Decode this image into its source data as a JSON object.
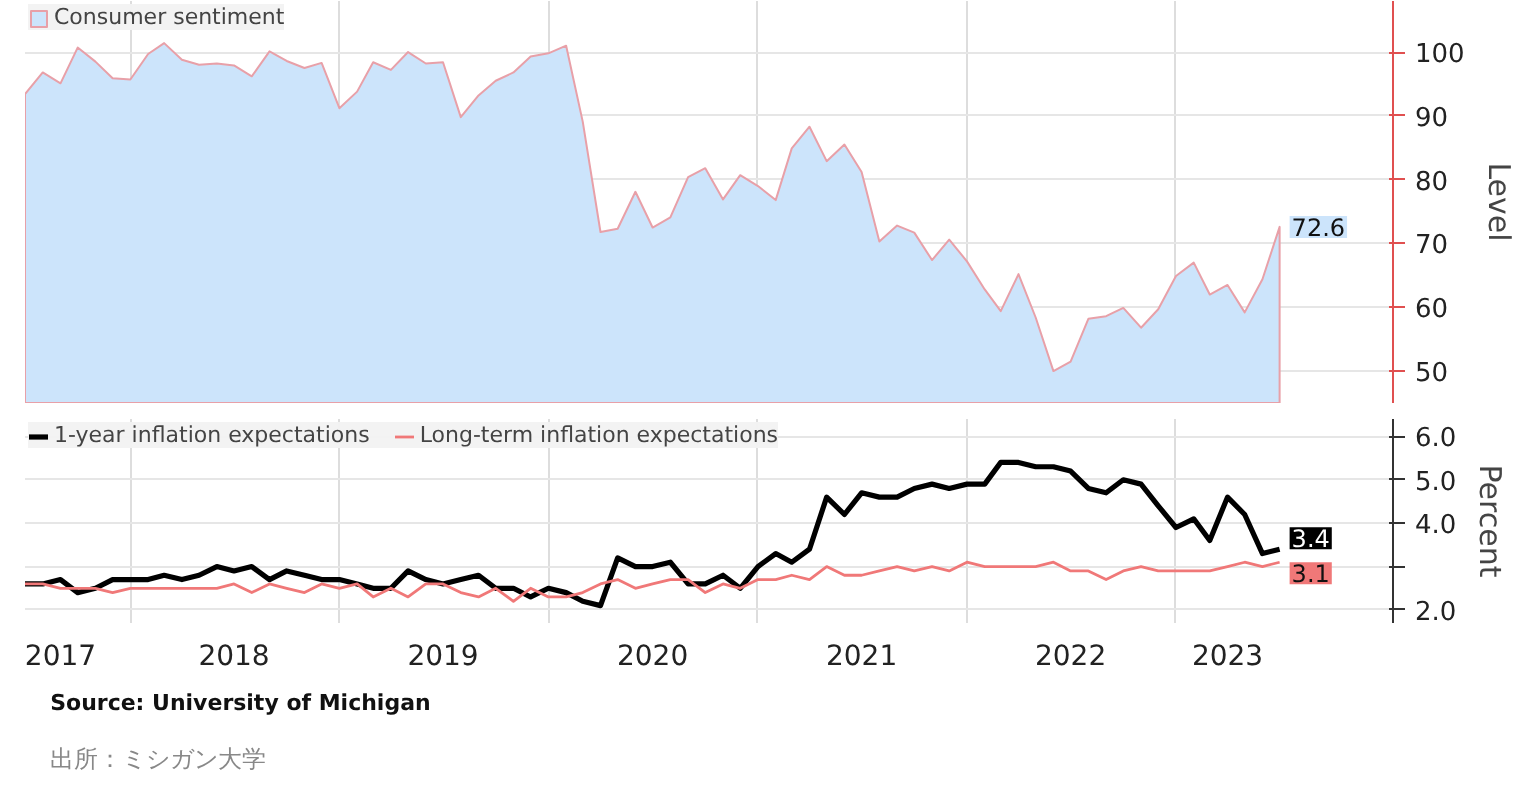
{
  "chart_data": [
    {
      "type": "area",
      "ylabel": "Level",
      "x": [
        "2017-07",
        "2017-08",
        "2017-09",
        "2017-10",
        "2017-11",
        "2017-12",
        "2018-01",
        "2018-02",
        "2018-03",
        "2018-04",
        "2018-05",
        "2018-06",
        "2018-07",
        "2018-08",
        "2018-09",
        "2018-10",
        "2018-11",
        "2018-12",
        "2019-01",
        "2019-02",
        "2019-03",
        "2019-04",
        "2019-05",
        "2019-06",
        "2019-07",
        "2019-08",
        "2019-09",
        "2019-10",
        "2019-11",
        "2019-12",
        "2020-01",
        "2020-02",
        "2020-03",
        "2020-04",
        "2020-05",
        "2020-06",
        "2020-07",
        "2020-08",
        "2020-09",
        "2020-10",
        "2020-11",
        "2020-12",
        "2021-01",
        "2021-02",
        "2021-03",
        "2021-04",
        "2021-05",
        "2021-06",
        "2021-07",
        "2021-08",
        "2021-09",
        "2021-10",
        "2021-11",
        "2021-12",
        "2022-01",
        "2022-02",
        "2022-03",
        "2022-04",
        "2022-05",
        "2022-06",
        "2022-07",
        "2022-08",
        "2022-09",
        "2022-10",
        "2022-11",
        "2022-12",
        "2023-01",
        "2023-02",
        "2023-03",
        "2023-04",
        "2023-05",
        "2023-06",
        "2023-07"
      ],
      "series": [
        {
          "name": "Consumer sentiment",
          "color": "#cce4fb",
          "values": [
            93.4,
            96.8,
            95.1,
            100.7,
            98.5,
            95.9,
            95.7,
            99.7,
            101.4,
            98.8,
            98.0,
            98.2,
            97.9,
            96.2,
            100.1,
            98.6,
            97.5,
            98.3,
            91.2,
            93.8,
            98.4,
            97.2,
            100.0,
            98.2,
            98.4,
            89.8,
            93.2,
            95.5,
            96.8,
            99.3,
            99.8,
            101.0,
            89.1,
            71.8,
            72.3,
            78.1,
            72.5,
            74.1,
            80.4,
            81.8,
            76.9,
            80.7,
            79.0,
            76.8,
            84.9,
            88.3,
            82.9,
            85.5,
            81.2,
            70.3,
            72.8,
            71.7,
            67.4,
            70.6,
            67.2,
            62.8,
            59.4,
            65.2,
            58.4,
            50.0,
            51.5,
            58.2,
            58.6,
            59.9,
            56.8,
            59.7,
            64.9,
            67.0,
            62.0,
            63.5,
            59.2,
            64.4,
            72.6
          ]
        }
      ],
      "xlim": [
        "2017-07",
        "2024-01-15"
      ],
      "xticks": [
        {
          "value": "2018-01",
          "label": null
        },
        {
          "value": "2019-01",
          "label": null
        },
        {
          "value": "2020-01",
          "label": null
        },
        {
          "value": "2021-01",
          "label": null
        },
        {
          "value": "2022-01",
          "label": null
        },
        {
          "value": "2023-01",
          "label": null
        }
      ],
      "ylim": [
        45,
        108
      ],
      "yticks": [
        50,
        60,
        70,
        80,
        90,
        100
      ],
      "grid": true,
      "legend": "top left",
      "tick_labels": "y",
      "annotations": [
        {
          "text": "72.6",
          "x": "2023-07",
          "y": 72.6
        }
      ]
    },
    {
      "type": "line",
      "ylabel": "Percent",
      "x": [
        "2017-07",
        "2017-08",
        "2017-09",
        "2017-10",
        "2017-11",
        "2017-12",
        "2018-01",
        "2018-02",
        "2018-03",
        "2018-04",
        "2018-05",
        "2018-06",
        "2018-07",
        "2018-08",
        "2018-09",
        "2018-10",
        "2018-11",
        "2018-12",
        "2019-01",
        "2019-02",
        "2019-03",
        "2019-04",
        "2019-05",
        "2019-06",
        "2019-07",
        "2019-08",
        "2019-09",
        "2019-10",
        "2019-11",
        "2019-12",
        "2020-01",
        "2020-02",
        "2020-03",
        "2020-04",
        "2020-05",
        "2020-06",
        "2020-07",
        "2020-08",
        "2020-09",
        "2020-10",
        "2020-11",
        "2020-12",
        "2021-01",
        "2021-02",
        "2021-03",
        "2021-04",
        "2021-05",
        "2021-06",
        "2021-07",
        "2021-08",
        "2021-09",
        "2021-10",
        "2021-11",
        "2021-12",
        "2022-01",
        "2022-02",
        "2022-03",
        "2022-04",
        "2022-05",
        "2022-06",
        "2022-07",
        "2022-08",
        "2022-09",
        "2022-10",
        "2022-11",
        "2022-12",
        "2023-01",
        "2023-02",
        "2023-03",
        "2023-04",
        "2023-05",
        "2023-06",
        "2023-07"
      ],
      "series": [
        {
          "name": "1-year inflation expectations",
          "color": "#000000",
          "values": [
            2.6,
            2.6,
            2.7,
            2.4,
            2.5,
            2.7,
            2.7,
            2.7,
            2.8,
            2.7,
            2.8,
            3.0,
            2.9,
            3.0,
            2.7,
            2.9,
            2.8,
            2.7,
            2.7,
            2.6,
            2.5,
            2.5,
            2.9,
            2.7,
            2.6,
            2.7,
            2.8,
            2.5,
            2.5,
            2.3,
            2.5,
            2.4,
            2.2,
            2.1,
            3.2,
            3.0,
            3.0,
            3.1,
            2.6,
            2.6,
            2.8,
            2.5,
            3.0,
            3.3,
            3.1,
            3.4,
            4.6,
            4.2,
            4.7,
            4.6,
            4.6,
            4.8,
            4.9,
            4.8,
            4.9,
            4.9,
            5.4,
            5.4,
            5.3,
            5.3,
            5.2,
            4.8,
            4.7,
            5.0,
            4.9,
            4.4,
            3.9,
            4.1,
            3.6,
            4.6,
            4.2,
            3.3,
            3.4
          ]
        },
        {
          "name": "Long-term inflation expectations",
          "color": "#f07878",
          "values": [
            2.6,
            2.6,
            2.5,
            2.5,
            2.5,
            2.4,
            2.5,
            2.5,
            2.5,
            2.5,
            2.5,
            2.5,
            2.6,
            2.4,
            2.6,
            2.5,
            2.4,
            2.6,
            2.5,
            2.6,
            2.3,
            2.5,
            2.3,
            2.6,
            2.6,
            2.4,
            2.3,
            2.5,
            2.2,
            2.5,
            2.3,
            2.3,
            2.4,
            2.6,
            2.7,
            2.5,
            2.6,
            2.7,
            2.7,
            2.4,
            2.6,
            2.5,
            2.7,
            2.7,
            2.8,
            2.7,
            3.0,
            2.8,
            2.8,
            2.9,
            3.0,
            2.9,
            3.0,
            2.9,
            3.1,
            3.0,
            3.0,
            3.0,
            3.0,
            3.1,
            2.9,
            2.9,
            2.7,
            2.9,
            3.0,
            2.9,
            2.9,
            2.9,
            2.9,
            3.0,
            3.1,
            3.0,
            3.1
          ]
        }
      ],
      "xlim": [
        "2017-07",
        "2024-01-15"
      ],
      "xticks": [
        {
          "value": "2017-09",
          "label": "2017"
        },
        {
          "value": "2018-01",
          "label": null
        },
        {
          "value": "2018-07",
          "label": "2018"
        },
        {
          "value": "2019-01",
          "label": null
        },
        {
          "value": "2019-07",
          "label": "2019"
        },
        {
          "value": "2020-01",
          "label": null
        },
        {
          "value": "2020-07",
          "label": "2020"
        },
        {
          "value": "2021-01",
          "label": null
        },
        {
          "value": "2021-07",
          "label": "2021"
        },
        {
          "value": "2022-01",
          "label": null
        },
        {
          "value": "2022-07",
          "label": "2022"
        },
        {
          "value": "2023-01",
          "label": null
        },
        {
          "value": "2023-04",
          "label": "2023"
        }
      ],
      "ylim": [
        1.7,
        6.4
      ],
      "yticks": [
        {
          "value": 2,
          "label": "2.0"
        },
        {
          "value": 3,
          "label": null
        },
        {
          "value": 4,
          "label": "4.0"
        },
        {
          "value": 5,
          "label": "5.0"
        },
        {
          "value": 6,
          "label": "6.0"
        }
      ],
      "grid": true,
      "legend": "top left",
      "annotations": [
        {
          "text": "3.4",
          "x": "2023-07",
          "y": 3.4
        },
        {
          "text": "3.1",
          "x": "2023-07",
          "y": 3.1
        },
        "Source: University of Michigan",
        "出所：ミシガン大学"
      ]
    }
  ]
}
